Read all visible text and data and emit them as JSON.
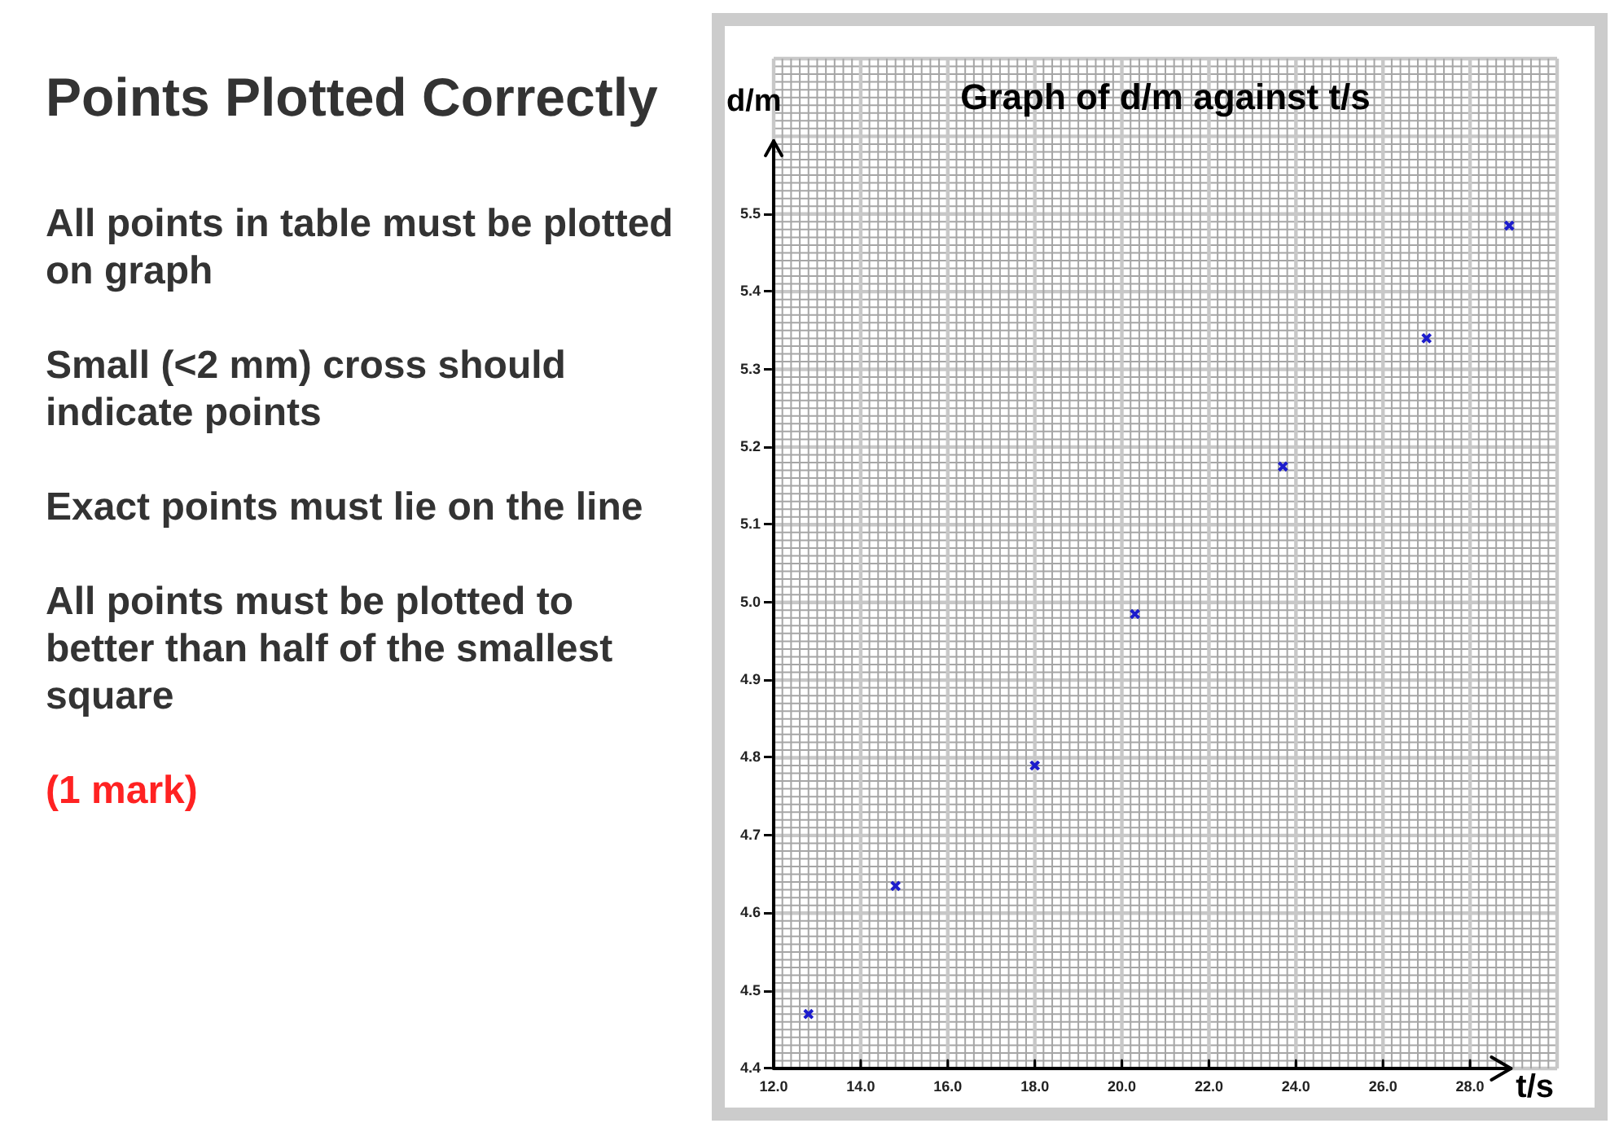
{
  "chart_data": [
    {
      "type": "other",
      "title": "Points Plotted Correctly",
      "annotations": [
        "All points in table must be plotted on graph",
        "Small (<2 mm) cross should indicate points",
        "Exact points must lie on the line",
        "All points must be plotted to better than half of the smallest square",
        "(1 mark)"
      ]
    },
    {
      "type": "scatter",
      "title": "Graph of d/m against t/s",
      "xlabel": "t/s",
      "ylabel": "d/m",
      "x": [
        12.8,
        14.8,
        18.0,
        20.3,
        23.7,
        27.0,
        28.9
      ],
      "values": [
        4.47,
        4.635,
        4.79,
        4.985,
        5.175,
        5.34,
        5.485
      ],
      "color": "#1c1ccc",
      "marker": "cross",
      "xlim": [
        12,
        30
      ],
      "ylim": [
        4.4,
        5.7
      ],
      "xticks": [
        {
          "value": 12,
          "label": "12.0"
        },
        {
          "value": 14,
          "label": "14.0"
        },
        {
          "value": 16,
          "label": "16.0"
        },
        {
          "value": 18,
          "label": "18.0"
        },
        {
          "value": 20,
          "label": "20.0"
        },
        {
          "value": 22,
          "label": "22.0"
        },
        {
          "value": 24,
          "label": "24.0"
        },
        {
          "value": 26,
          "label": "26.0"
        },
        {
          "value": 28,
          "label": "28.0"
        }
      ],
      "yticks": [
        4.4,
        4.5,
        4.6,
        4.7,
        4.8,
        4.9,
        {
          "value": 5,
          "label": "5.0"
        },
        5.1,
        5.2,
        5.3,
        5.4,
        5.5
      ],
      "grid": true
    }
  ]
}
